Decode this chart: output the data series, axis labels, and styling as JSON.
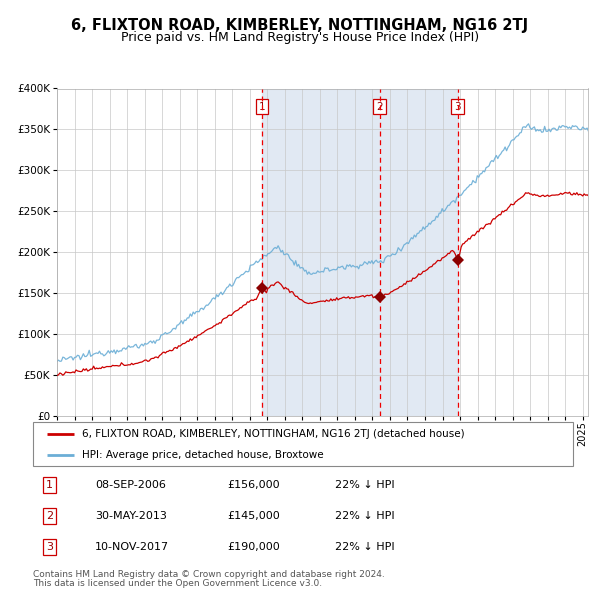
{
  "title": "6, FLIXTON ROAD, KIMBERLEY, NOTTINGHAM, NG16 2TJ",
  "subtitle": "Price paid vs. HM Land Registry's House Price Index (HPI)",
  "title_fontsize": 10.5,
  "subtitle_fontsize": 9,
  "legend_line1": "6, FLIXTON ROAD, KIMBERLEY, NOTTINGHAM, NG16 2TJ (detached house)",
  "legend_line2": "HPI: Average price, detached house, Broxtowe",
  "sale1_date": "08-SEP-2006",
  "sale1_price": 156000,
  "sale1_hpi": "22% ↓ HPI",
  "sale2_date": "30-MAY-2013",
  "sale2_price": 145000,
  "sale2_hpi": "22% ↓ HPI",
  "sale3_date": "10-NOV-2017",
  "sale3_price": 190000,
  "sale3_hpi": "22% ↓ HPI",
  "footnote1": "Contains HM Land Registry data © Crown copyright and database right 2024.",
  "footnote2": "This data is licensed under the Open Government Licence v3.0.",
  "hpi_color": "#6baed6",
  "price_color": "#cc0000",
  "sale_marker_color": "#8b0000",
  "vline_color": "#ee0000",
  "shade_color": "#dce6f1",
  "grid_color": "#c8c8c8",
  "ylim": [
    0,
    400000
  ],
  "yticks": [
    0,
    50000,
    100000,
    150000,
    200000,
    250000,
    300000,
    350000,
    400000
  ],
  "sale1_x": 2006.69,
  "sale2_x": 2013.41,
  "sale3_x": 2017.86,
  "xmin": 1995,
  "xmax": 2025.3
}
